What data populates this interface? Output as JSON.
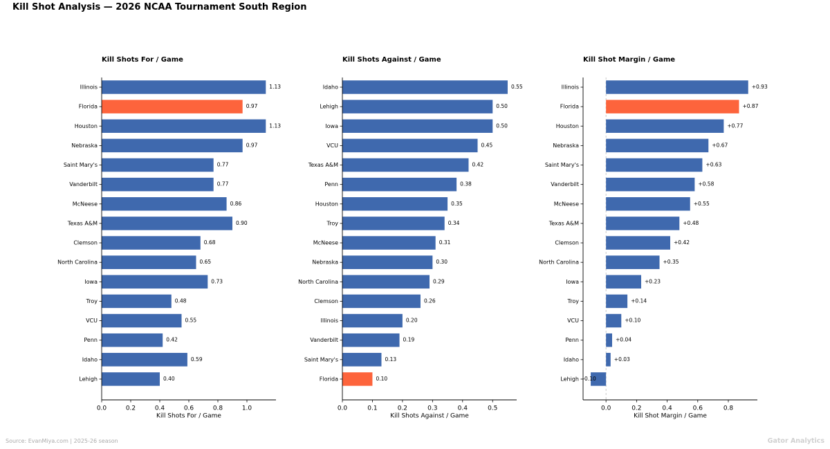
{
  "figure": {
    "title": "Kill Shot Analysis — 2026 NCAA Tournament South Region",
    "source": "Source: EvanMiya.com  |  2025-26 season",
    "watermark": "Gator Analytics"
  },
  "colors": {
    "bar": "#3f69ae",
    "highlight": "#fd643c",
    "zero_line": "#bbbbbb"
  },
  "chart_data": [
    {
      "type": "bar",
      "orientation": "horizontal",
      "title": "Kill Shots For / Game",
      "xlabel": "Kill Shots For / Game",
      "xlim": [
        0,
        1.2
      ],
      "xticks": [
        "0.0",
        "0.2",
        "0.4",
        "0.6",
        "0.8",
        "1.0"
      ],
      "xtick_values": [
        0,
        0.2,
        0.4,
        0.6,
        0.8,
        1.0
      ],
      "highlight": "Florida",
      "categories": [
        "Illinois",
        "Florida",
        "Houston",
        "Nebraska",
        "Saint Mary's",
        "Vanderbilt",
        "McNeese",
        "Texas A&M",
        "Clemson",
        "North Carolina",
        "Iowa",
        "Troy",
        "VCU",
        "Penn",
        "Idaho",
        "Lehigh"
      ],
      "values": [
        1.13,
        0.97,
        1.13,
        0.97,
        0.77,
        0.77,
        0.86,
        0.9,
        0.68,
        0.65,
        0.73,
        0.48,
        0.55,
        0.42,
        0.59,
        0.4
      ],
      "labels": [
        "1.13",
        "0.97",
        "1.13",
        "0.97",
        "0.77",
        "0.77",
        "0.86",
        "0.90",
        "0.68",
        "0.65",
        "0.73",
        "0.48",
        "0.55",
        "0.42",
        "0.59",
        "0.40"
      ]
    },
    {
      "type": "bar",
      "orientation": "horizontal",
      "title": "Kill Shots Against / Game",
      "xlabel": "Kill Shots Against / Game",
      "xlim": [
        0,
        0.58
      ],
      "xticks": [
        "0.0",
        "0.1",
        "0.2",
        "0.3",
        "0.4",
        "0.5"
      ],
      "xtick_values": [
        0,
        0.1,
        0.2,
        0.3,
        0.4,
        0.5
      ],
      "highlight": "Florida",
      "categories": [
        "Idaho",
        "Lehigh",
        "Iowa",
        "VCU",
        "Texas A&M",
        "Penn",
        "Houston",
        "Troy",
        "McNeese",
        "Nebraska",
        "North Carolina",
        "Clemson",
        "Illinois",
        "Vanderbilt",
        "Saint Mary's",
        "Florida"
      ],
      "values": [
        0.55,
        0.5,
        0.5,
        0.45,
        0.42,
        0.38,
        0.35,
        0.34,
        0.31,
        0.3,
        0.29,
        0.26,
        0.2,
        0.19,
        0.13,
        0.1
      ],
      "labels": [
        "0.55",
        "0.50",
        "0.50",
        "0.45",
        "0.42",
        "0.38",
        "0.35",
        "0.34",
        "0.31",
        "0.30",
        "0.29",
        "0.26",
        "0.20",
        "0.19",
        "0.13",
        "0.10"
      ]
    },
    {
      "type": "bar",
      "orientation": "horizontal",
      "title": "Kill Shot Margin / Game",
      "xlabel": "Kill Shot Margin / Game",
      "xlim": [
        -0.15,
        0.99
      ],
      "xticks": [
        "0.0",
        "0.2",
        "0.4",
        "0.6",
        "0.8"
      ],
      "xtick_values": [
        0,
        0.2,
        0.4,
        0.6,
        0.8
      ],
      "zero_line": true,
      "highlight": "Florida",
      "categories": [
        "Illinois",
        "Florida",
        "Houston",
        "Nebraska",
        "Saint Mary's",
        "Vanderbilt",
        "McNeese",
        "Texas A&M",
        "Clemson",
        "North Carolina",
        "Iowa",
        "Troy",
        "VCU",
        "Penn",
        "Idaho",
        "Lehigh"
      ],
      "values": [
        0.93,
        0.87,
        0.77,
        0.67,
        0.63,
        0.58,
        0.55,
        0.48,
        0.42,
        0.35,
        0.23,
        0.14,
        0.1,
        0.04,
        0.03,
        -0.1
      ],
      "labels": [
        "+0.93",
        "+0.87",
        "+0.77",
        "+0.67",
        "+0.63",
        "+0.58",
        "+0.55",
        "+0.48",
        "+0.42",
        "+0.35",
        "+0.23",
        "+0.14",
        "+0.10",
        "+0.04",
        "+0.03",
        "-0.10"
      ]
    }
  ]
}
